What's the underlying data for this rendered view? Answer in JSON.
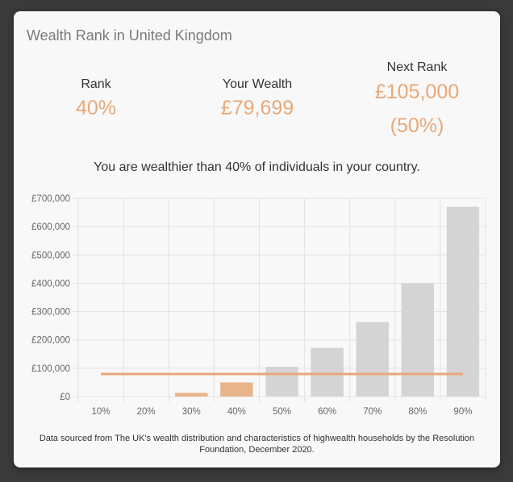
{
  "title": "Wealth Rank in United Kingdom",
  "rank": {
    "label": "Rank",
    "value": "40%"
  },
  "wealth": {
    "label": "Your Wealth",
    "value": "£79,699"
  },
  "next": {
    "label": "Next Rank",
    "value": "£105,000",
    "percent": "(50%)"
  },
  "summary": "You are wealthier than 40% of individuals in your country.",
  "footnote": "Data sourced from The UK's wealth distribution and characteristics of highwealth households by the Resolution Foundation, December 2020.",
  "colors": {
    "accent": "#e8a878",
    "bar": "#d4d4d4",
    "highlight_bar": "#e8b48a",
    "line": "#e8a878"
  },
  "chart_data": {
    "type": "bar",
    "categories": [
      "10%",
      "20%",
      "30%",
      "40%",
      "50%",
      "60%",
      "70%",
      "80%",
      "90%"
    ],
    "values": [
      0,
      0,
      13000,
      50000,
      105000,
      172000,
      263000,
      400000,
      670000
    ],
    "highlight_index": 3,
    "reference_line": 79699,
    "ylim": [
      0,
      700000
    ],
    "yticks": [
      0,
      100000,
      200000,
      300000,
      400000,
      500000,
      600000,
      700000
    ],
    "ytick_labels": [
      "£0",
      "£100,000",
      "£200,000",
      "£300,000",
      "£400,000",
      "£500,000",
      "£600,000",
      "£700,000"
    ],
    "grid": true,
    "title": "",
    "xlabel": "",
    "ylabel": ""
  }
}
